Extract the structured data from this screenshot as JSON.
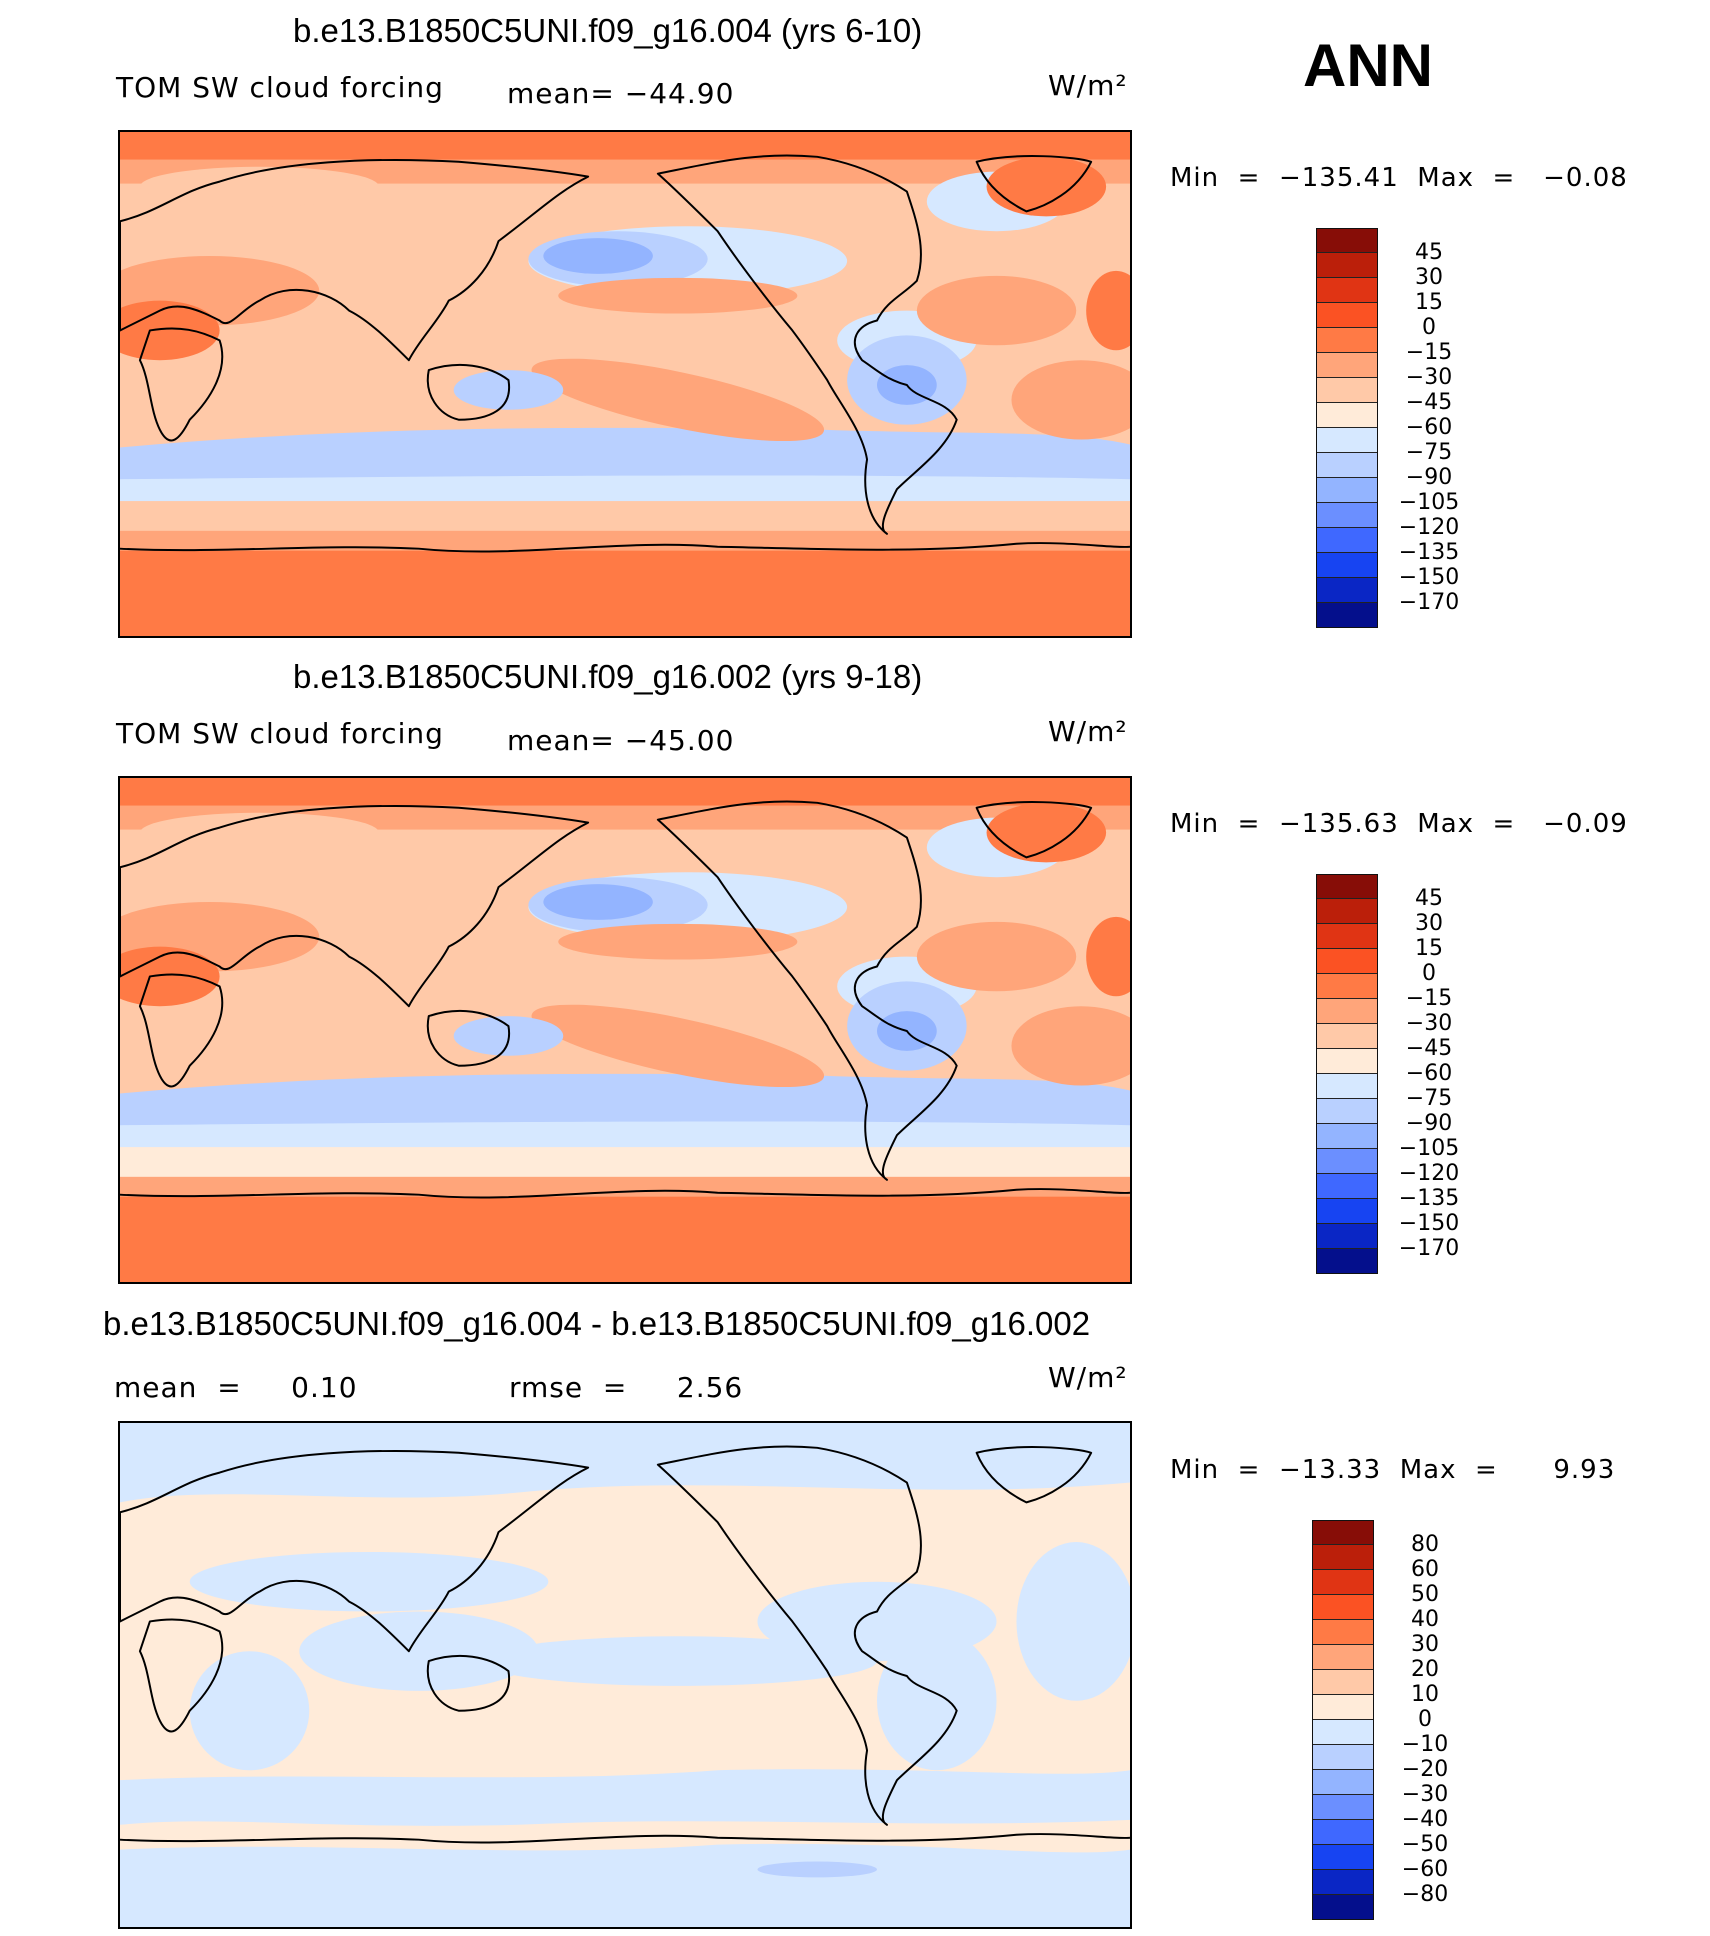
{
  "header": {
    "season": "ANN"
  },
  "colors": {
    "warm": [
      "#ffebd9",
      "#ffc9a8",
      "#ffa57a",
      "#ff7a45",
      "#fb5223",
      "#e03414",
      "#bb1f0a",
      "#870d07"
    ],
    "cool": [
      "#d6e8ff",
      "#b9d0ff",
      "#93b4ff",
      "#6b8fff",
      "#3f68ff",
      "#1744f2",
      "#0a26c5",
      "#040f8c"
    ]
  },
  "panels": [
    {
      "title": "b.e13.B1850C5UNI.f09_g16.004 (yrs 6-10)",
      "left_label": "TOM SW cloud forcing",
      "mean_text": "mean= −44.90",
      "units": "W/m²",
      "stats": "Min  =  −135.41  Max  =   −0.08",
      "map_name": "panel-1-map",
      "palette": [
        "#870d07",
        "#bb1f0a",
        "#e03414",
        "#fb5223",
        "#ff7a45",
        "#ffa57a",
        "#ffc9a8",
        "#ffebd9",
        "#d6e8ff",
        "#b9d0ff",
        "#93b4ff",
        "#6b8fff",
        "#3f68ff",
        "#1744f2",
        "#0a26c5",
        "#040f8c"
      ],
      "levels": [
        "45",
        "30",
        "15",
        "0",
        "−15",
        "−30",
        "−45",
        "−60",
        "−75",
        "−90",
        "−105",
        "−120",
        "−135",
        "−150",
        "−170"
      ]
    },
    {
      "title": "b.e13.B1850C5UNI.f09_g16.002 (yrs 9-18)",
      "left_label": "TOM SW cloud forcing",
      "mean_text": "mean= −45.00",
      "units": "W/m²",
      "stats": "Min  =  −135.63  Max  =   −0.09",
      "map_name": "panel-2-map",
      "palette": [
        "#870d07",
        "#bb1f0a",
        "#e03414",
        "#fb5223",
        "#ff7a45",
        "#ffa57a",
        "#ffc9a8",
        "#ffebd9",
        "#d6e8ff",
        "#b9d0ff",
        "#93b4ff",
        "#6b8fff",
        "#3f68ff",
        "#1744f2",
        "#0a26c5",
        "#040f8c"
      ],
      "levels": [
        "45",
        "30",
        "15",
        "0",
        "−15",
        "−30",
        "−45",
        "−60",
        "−75",
        "−90",
        "−105",
        "−120",
        "−135",
        "−150",
        "−170"
      ]
    },
    {
      "title": "b.e13.B1850C5UNI.f09_g16.004 - b.e13.B1850C5UNI.f09_g16.002",
      "left_label": "mean  =     0.10",
      "mean_text": "rmse  =     2.56",
      "units": "W/m²",
      "stats": "Min  =  −13.33  Max  =      9.93",
      "map_name": "difference-map",
      "palette": [
        "#870d07",
        "#bb1f0a",
        "#e03414",
        "#fb5223",
        "#ff7a45",
        "#ffa57a",
        "#ffc9a8",
        "#ffebd9",
        "#d6e8ff",
        "#b9d0ff",
        "#93b4ff",
        "#6b8fff",
        "#3f68ff",
        "#1744f2",
        "#0a26c5",
        "#040f8c"
      ],
      "levels": [
        "80",
        "60",
        "50",
        "40",
        "30",
        "20",
        "10",
        "0",
        "−10",
        "−20",
        "−30",
        "−40",
        "−50",
        "−60",
        "−80"
      ]
    }
  ]
}
